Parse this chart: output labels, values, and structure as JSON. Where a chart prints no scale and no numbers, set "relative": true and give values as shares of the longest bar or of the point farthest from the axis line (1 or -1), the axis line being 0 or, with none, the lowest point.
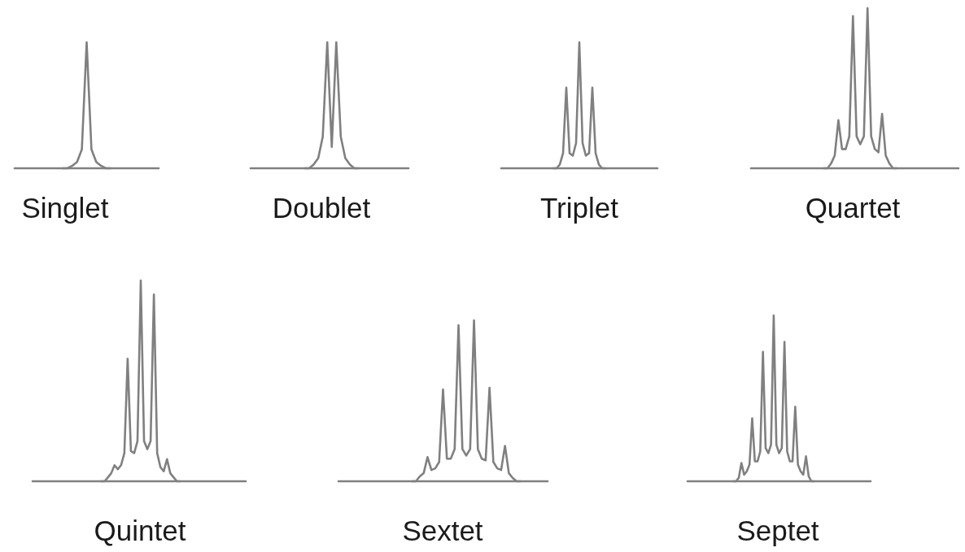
{
  "chart_data": [
    {
      "type": "line",
      "relative": true,
      "xlabel": "Singlet",
      "categories": [
        null,
        null,
        null,
        null,
        null,
        null,
        null,
        null,
        null,
        null,
        null
      ],
      "series": [
        {
          "color": "#808080",
          "values": [
            0,
            0,
            0.02,
            0.05,
            0.15,
            1,
            0.15,
            0.05,
            0.02,
            0,
            0
          ]
        }
      ]
    },
    {
      "type": "line",
      "relative": true,
      "xlabel": "Doublet",
      "categories": [
        null,
        null,
        null,
        null,
        null,
        null,
        null,
        null,
        null,
        null,
        null,
        null,
        null
      ],
      "series": [
        {
          "color": "#808080",
          "values": [
            0,
            0,
            0.03,
            0.08,
            0.25,
            1,
            0.17,
            1,
            0.25,
            0.08,
            0.03,
            0,
            0
          ]
        }
      ]
    },
    {
      "type": "line",
      "relative": true,
      "xlabel": "Triplet",
      "categories": [
        null,
        null,
        null,
        null,
        null,
        null,
        null,
        null,
        null,
        null,
        null,
        null,
        null,
        null,
        null,
        null,
        null
      ],
      "series": [
        {
          "color": "#808080",
          "values": [
            0,
            0,
            0.03,
            0.12,
            0.64,
            0.12,
            0.1,
            0.2,
            1,
            0.2,
            0.1,
            0.12,
            0.64,
            0.12,
            0.03,
            0,
            0
          ]
        }
      ]
    },
    {
      "type": "line",
      "relative": true,
      "xlabel": "Quartet",
      "categories": [
        null,
        null,
        null,
        null,
        null,
        null,
        null,
        null,
        null,
        null,
        null,
        null,
        null,
        null,
        null,
        null,
        null,
        null,
        null,
        null,
        null
      ],
      "series": [
        {
          "color": "#808080",
          "values": [
            0,
            0,
            0.03,
            0.08,
            0.3,
            0.12,
            0.12,
            0.2,
            0.95,
            0.2,
            0.15,
            0.2,
            1,
            0.2,
            0.12,
            0.1,
            0.34,
            0.08,
            0.03,
            0,
            0
          ]
        }
      ]
    },
    {
      "type": "line",
      "relative": true,
      "xlabel": "Quintet",
      "categories": [
        null,
        null,
        null,
        null,
        null,
        null,
        null,
        null,
        null,
        null,
        null,
        null,
        null,
        null,
        null,
        null,
        null,
        null,
        null,
        null,
        null,
        null,
        null,
        null,
        null
      ],
      "series": [
        {
          "color": "#808080",
          "values": [
            0,
            0,
            0.02,
            0.04,
            0.08,
            0.06,
            0.08,
            0.14,
            0.61,
            0.15,
            0.14,
            0.2,
            1,
            0.2,
            0.16,
            0.2,
            0.93,
            0.14,
            0.07,
            0.05,
            0.11,
            0.04,
            0.02,
            0,
            0
          ]
        }
      ]
    },
    {
      "type": "line",
      "relative": true,
      "xlabel": "Sextet",
      "categories": [
        null,
        null,
        null,
        null,
        null,
        null,
        null,
        null,
        null,
        null,
        null,
        null,
        null,
        null,
        null,
        null,
        null,
        null,
        null,
        null,
        null,
        null,
        null,
        null,
        null,
        null,
        null,
        null,
        null
      ],
      "series": [
        {
          "color": "#808080",
          "values": [
            0,
            0,
            0.03,
            0.05,
            0.15,
            0.07,
            0.08,
            0.12,
            0.57,
            0.14,
            0.14,
            0.2,
            0.97,
            0.2,
            0.16,
            0.2,
            1,
            0.2,
            0.14,
            0.13,
            0.58,
            0.12,
            0.08,
            0.07,
            0.22,
            0.05,
            0.02,
            0,
            0
          ]
        }
      ]
    },
    {
      "type": "line",
      "relative": true,
      "xlabel": "Septet",
      "categories": [
        null,
        null,
        null,
        null,
        null,
        null,
        null,
        null,
        null,
        null,
        null,
        null,
        null,
        null,
        null,
        null,
        null,
        null,
        null,
        null,
        null,
        null,
        null,
        null,
        null,
        null,
        null,
        null,
        null,
        null,
        null
      ],
      "series": [
        {
          "color": "#808080",
          "values": [
            0,
            0,
            0.02,
            0.11,
            0.04,
            0.06,
            0.1,
            0.38,
            0.12,
            0.12,
            0.18,
            0.78,
            0.2,
            0.17,
            0.22,
            1,
            0.22,
            0.17,
            0.2,
            0.84,
            0.18,
            0.12,
            0.12,
            0.45,
            0.1,
            0.06,
            0.04,
            0.15,
            0.03,
            0,
            0
          ]
        }
      ]
    }
  ]
}
